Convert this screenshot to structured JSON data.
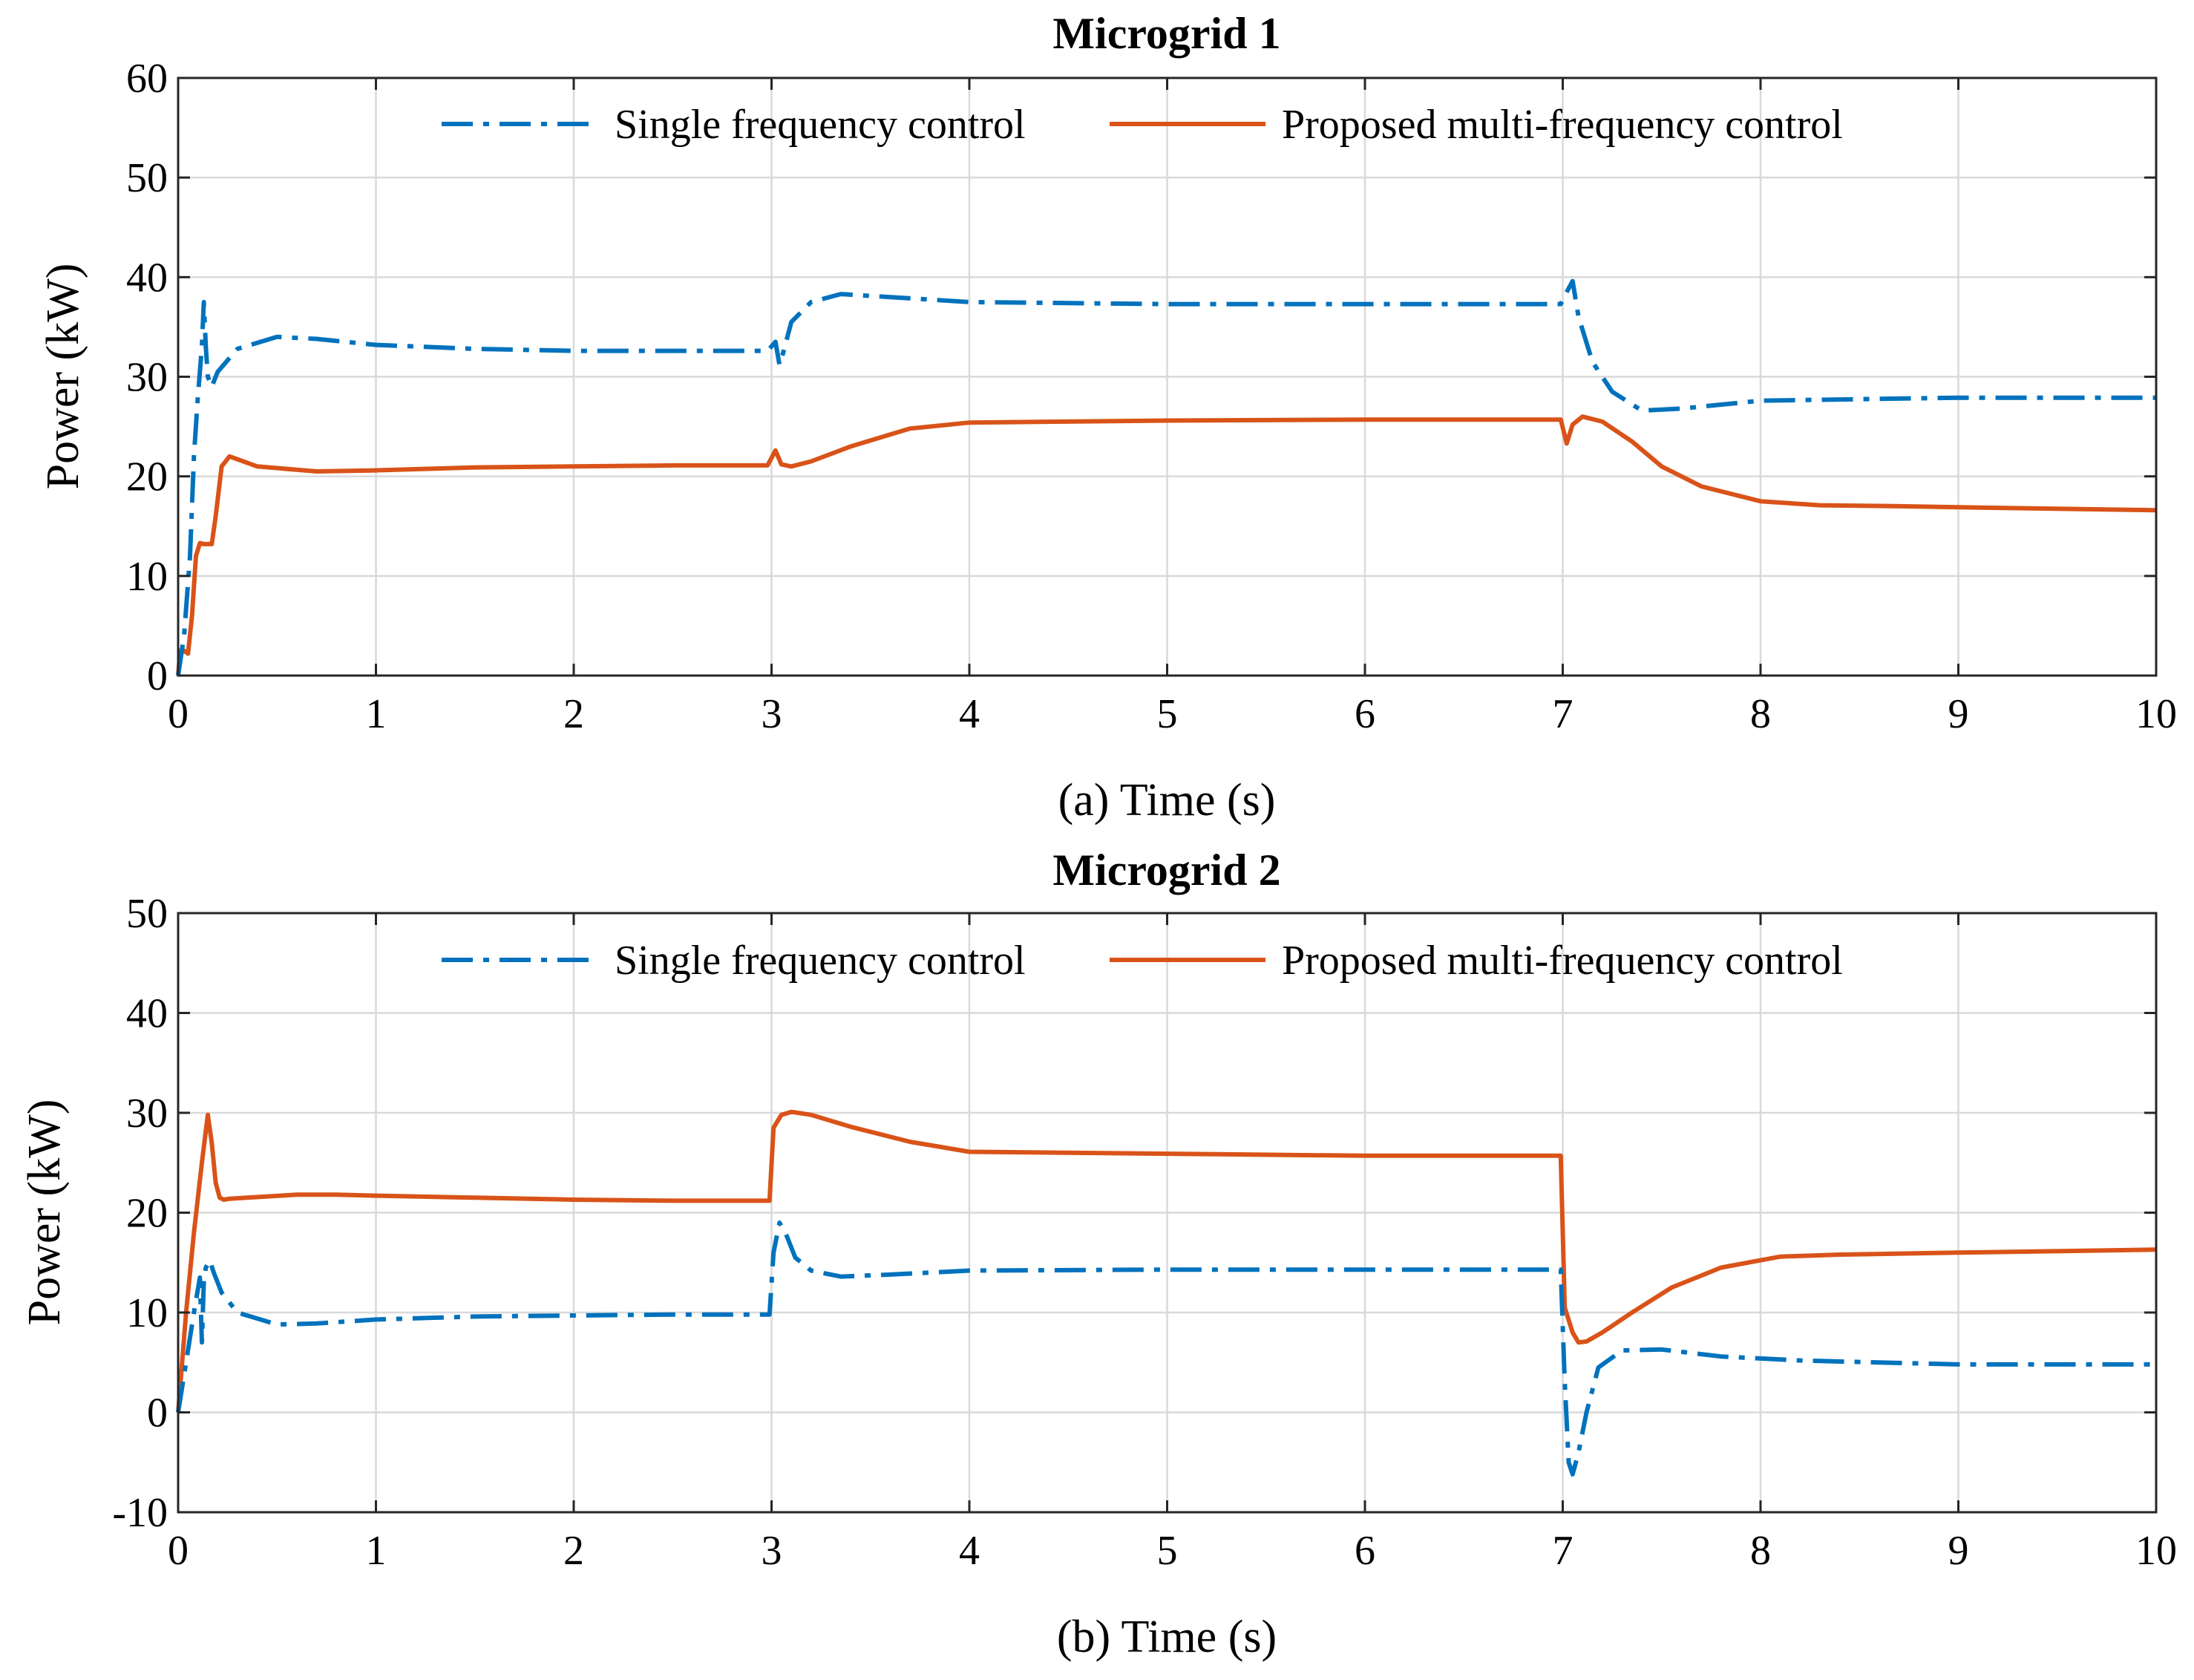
{
  "colors": {
    "single": "#0072BD",
    "proposed": "#D95319",
    "grid": "#d9d9d9",
    "axis": "#262626"
  },
  "chart_data": [
    {
      "type": "line",
      "title": "Microgrid 1",
      "xlabel": "(a) Time (s)",
      "ylabel": "Power (kW)",
      "xlim": [
        0,
        10
      ],
      "ylim": [
        0,
        60
      ],
      "xticks": [
        "0",
        "1",
        "2",
        "3",
        "4",
        "5",
        "6",
        "7",
        "8",
        "9",
        "10"
      ],
      "yticks": [
        "0",
        "10",
        "20",
        "30",
        "40",
        "50",
        "60"
      ],
      "grid": true,
      "legend": {
        "placement": "top-center",
        "orientation": "horizontal",
        "entries": [
          "Single frequency control",
          "Proposed multi-frequency control"
        ]
      },
      "series": [
        {
          "name": "Single frequency control",
          "style": "dashdot",
          "color": "#0072BD",
          "x": [
            0,
            0.03,
            0.06,
            0.08,
            0.1,
            0.12,
            0.13,
            0.14,
            0.15,
            0.17,
            0.2,
            0.3,
            0.5,
            0.7,
            1.0,
            1.5,
            2.0,
            2.5,
            2.98,
            3.02,
            3.04,
            3.06,
            3.1,
            3.2,
            3.35,
            3.6,
            4.0,
            5.0,
            6.0,
            6.99,
            7.02,
            7.05,
            7.08,
            7.15,
            7.25,
            7.4,
            7.6,
            8.0,
            9.0,
            10.0
          ],
          "values": [
            0,
            4,
            12,
            22,
            28,
            33,
            37.5,
            33,
            30,
            29,
            30.5,
            32.8,
            34,
            33.8,
            33.2,
            32.8,
            32.6,
            32.6,
            32.6,
            33.5,
            31.2,
            32.5,
            35.5,
            37.5,
            38.3,
            38,
            37.5,
            37.3,
            37.3,
            37.3,
            38.5,
            39.6,
            36,
            31.5,
            28.5,
            26.6,
            26.8,
            27.6,
            27.9,
            27.9
          ]
        },
        {
          "name": "Proposed multi-frequency control",
          "style": "solid",
          "color": "#D95319",
          "x": [
            0,
            0.01,
            0.03,
            0.05,
            0.07,
            0.09,
            0.11,
            0.13,
            0.17,
            0.19,
            0.22,
            0.26,
            0.4,
            0.7,
            1.0,
            1.5,
            2.0,
            2.5,
            2.98,
            3.02,
            3.05,
            3.1,
            3.2,
            3.4,
            3.7,
            4.0,
            5.0,
            6.0,
            6.99,
            7.02,
            7.05,
            7.1,
            7.2,
            7.35,
            7.5,
            7.7,
            8.0,
            8.3,
            8.7,
            9.0,
            10.0
          ],
          "values": [
            0,
            2.5,
            2.5,
            2.2,
            6,
            12,
            13.3,
            13.2,
            13.2,
            16,
            21,
            22,
            21,
            20.5,
            20.6,
            20.9,
            21,
            21.1,
            21.1,
            22.6,
            21.2,
            21,
            21.5,
            23,
            24.8,
            25.4,
            25.6,
            25.7,
            25.7,
            23.3,
            25.2,
            26,
            25.5,
            23.5,
            21,
            19,
            17.5,
            17.1,
            17,
            16.9,
            16.6
          ]
        }
      ]
    },
    {
      "type": "line",
      "title": "Microgrid 2",
      "xlabel": "(b) Time (s)",
      "ylabel": "Power (kW)",
      "xlim": [
        0,
        10
      ],
      "ylim": [
        -10,
        50
      ],
      "xticks": [
        "0",
        "1",
        "2",
        "3",
        "4",
        "5",
        "6",
        "7",
        "8",
        "9",
        "10"
      ],
      "yticks": [
        "-10",
        "0",
        "10",
        "20",
        "30",
        "40",
        "50"
      ],
      "grid": true,
      "legend": {
        "placement": "top-center",
        "orientation": "horizontal",
        "entries": [
          "Single frequency control",
          "Proposed multi-frequency control"
        ]
      },
      "series": [
        {
          "name": "Single frequency control",
          "style": "dashdot",
          "color": "#0072BD",
          "x": [
            0,
            0.04,
            0.08,
            0.11,
            0.12,
            0.13,
            0.14,
            0.16,
            0.18,
            0.22,
            0.3,
            0.5,
            0.7,
            1.0,
            1.5,
            2.0,
            2.5,
            2.99,
            3.01,
            3.04,
            3.07,
            3.12,
            3.2,
            3.35,
            3.6,
            4.0,
            5.0,
            6.0,
            6.99,
            7.01,
            7.03,
            7.05,
            7.08,
            7.12,
            7.18,
            7.3,
            7.5,
            7.8,
            8.2,
            9.0,
            10.0
          ],
          "values": [
            0,
            5,
            10,
            13.5,
            7,
            13,
            14.5,
            15.2,
            14,
            12,
            10,
            8.8,
            8.9,
            9.3,
            9.6,
            9.7,
            9.8,
            9.8,
            16,
            19,
            18,
            15.5,
            14.2,
            13.6,
            13.8,
            14.2,
            14.3,
            14.3,
            14.3,
            3,
            -5,
            -6.2,
            -4,
            0,
            4.5,
            6.2,
            6.3,
            5.6,
            5.2,
            4.8,
            4.8
          ]
        },
        {
          "name": "Proposed multi-frequency control",
          "style": "solid",
          "color": "#D95319",
          "x": [
            0,
            0.04,
            0.08,
            0.12,
            0.15,
            0.17,
            0.19,
            0.21,
            0.23,
            0.26,
            0.35,
            0.6,
            0.8,
            1.0,
            1.5,
            2.0,
            2.5,
            2.99,
            3.01,
            3.05,
            3.1,
            3.2,
            3.4,
            3.7,
            4.0,
            5.0,
            6.0,
            6.99,
            7.01,
            7.05,
            7.08,
            7.12,
            7.2,
            7.35,
            7.55,
            7.8,
            8.1,
            8.4,
            9.0,
            10.0
          ],
          "values": [
            0,
            10,
            18,
            25,
            29.8,
            27,
            23,
            21.5,
            21.3,
            21.4,
            21.5,
            21.8,
            21.8,
            21.7,
            21.5,
            21.3,
            21.2,
            21.2,
            28.5,
            29.8,
            30.1,
            29.8,
            28.6,
            27.1,
            26.1,
            25.9,
            25.7,
            25.7,
            10.5,
            8,
            7,
            7.1,
            8,
            10,
            12.5,
            14.5,
            15.6,
            15.8,
            16,
            16.3
          ]
        }
      ]
    }
  ]
}
